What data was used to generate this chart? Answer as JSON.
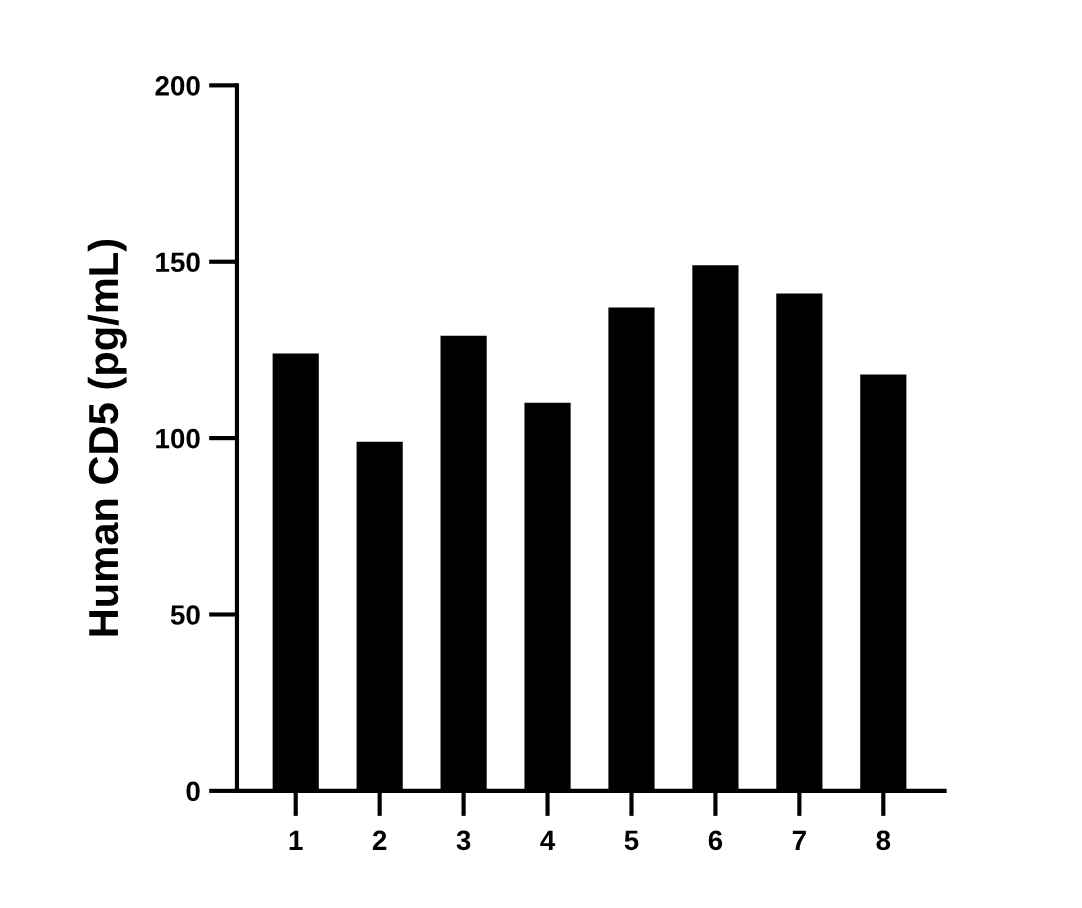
{
  "chart_data": {
    "type": "bar",
    "ylabel": "Human CD5 (pg/mL)",
    "categories": [
      "1",
      "2",
      "3",
      "4",
      "5",
      "6",
      "7",
      "8"
    ],
    "values": [
      124,
      99,
      129,
      110,
      137,
      149,
      141,
      118
    ],
    "color": "#000000",
    "ylim": [
      0,
      200
    ],
    "yticks": [
      0,
      50,
      100,
      150,
      200
    ],
    "grid": false,
    "legend": false
  }
}
